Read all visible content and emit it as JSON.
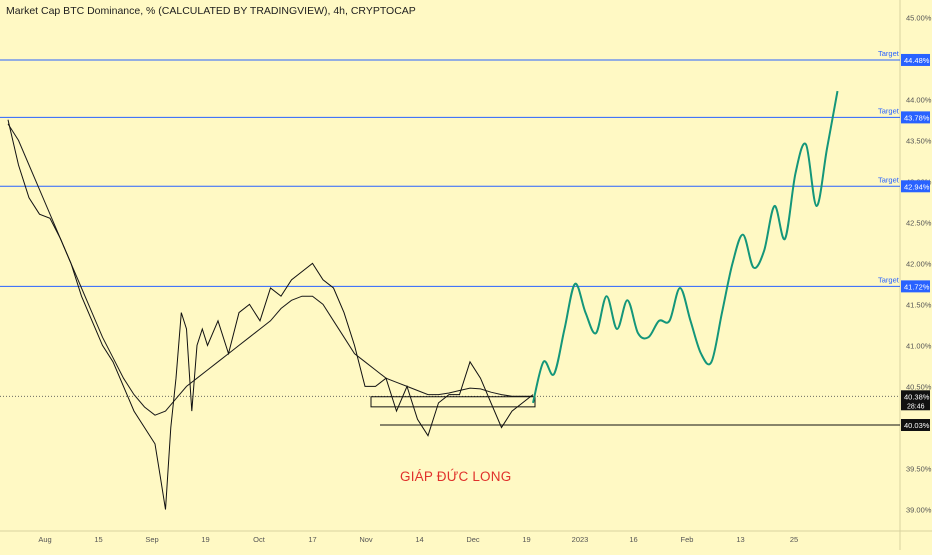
{
  "title": "Market Cap BTC Dominance, % (CALCULATED BY TRADINGVIEW), 4h, CRYPTOCAP",
  "signature": "GIÁP ĐỨC LONG",
  "colors": {
    "background": "#fff9c4",
    "price": "#111111",
    "ma": "#1a1a1a",
    "target_line": "#2962ff",
    "projection": "#14967a",
    "signature": "#e0312b",
    "axis_text": "#555555"
  },
  "chart_data": {
    "type": "line",
    "y_axis": {
      "ticks": [
        "45.00%",
        "44.00%",
        "43.50%",
        "43.00%",
        "42.50%",
        "42.00%",
        "41.50%",
        "41.00%",
        "40.50%",
        "39.50%",
        "39.00%"
      ],
      "tick_values": [
        45.0,
        44.0,
        43.5,
        43.0,
        42.5,
        42.0,
        41.5,
        41.0,
        40.5,
        39.5,
        39.0
      ],
      "range": [
        38.75,
        45.15
      ]
    },
    "x_axis": {
      "ticks": [
        "Aug",
        "15",
        "Sep",
        "19",
        "Oct",
        "17",
        "Nov",
        "14",
        "Dec",
        "19",
        "2023",
        "16",
        "Feb",
        "13",
        "25"
      ]
    },
    "target_levels": [
      {
        "label": "Target",
        "badge": "44.48%",
        "value": 44.48
      },
      {
        "label": "Target",
        "badge": "43.78%",
        "value": 43.78
      },
      {
        "label": "Target",
        "badge": "42.94%",
        "value": 42.94
      },
      {
        "label": "Target",
        "badge": "41.72%",
        "value": 41.72
      }
    ],
    "current_price": {
      "badge": "40.38%",
      "value": 40.38,
      "countdown": "28:46"
    },
    "support_level": {
      "badge": "40.03%",
      "value": 40.03
    },
    "price_series": [
      [
        0,
        43.75
      ],
      [
        1,
        43.2
      ],
      [
        2,
        42.8
      ],
      [
        3,
        42.6
      ],
      [
        4,
        42.55
      ],
      [
        5,
        42.3
      ],
      [
        6,
        42.0
      ],
      [
        7,
        41.6
      ],
      [
        8,
        41.3
      ],
      [
        9,
        41.0
      ],
      [
        10,
        40.8
      ],
      [
        11,
        40.5
      ],
      [
        12,
        40.2
      ],
      [
        13,
        40.0
      ],
      [
        14,
        39.8
      ],
      [
        14.5,
        39.4
      ],
      [
        15,
        39.0
      ],
      [
        15.5,
        40.0
      ],
      [
        16,
        40.6
      ],
      [
        16.5,
        41.4
      ],
      [
        17,
        41.2
      ],
      [
        17.5,
        40.2
      ],
      [
        18,
        41.0
      ],
      [
        18.5,
        41.2
      ],
      [
        19,
        41.0
      ],
      [
        20,
        41.3
      ],
      [
        21,
        40.9
      ],
      [
        22,
        41.4
      ],
      [
        23,
        41.5
      ],
      [
        24,
        41.3
      ],
      [
        25,
        41.7
      ],
      [
        26,
        41.6
      ],
      [
        27,
        41.8
      ],
      [
        28,
        41.9
      ],
      [
        29,
        42.0
      ],
      [
        30,
        41.8
      ],
      [
        31,
        41.7
      ],
      [
        32,
        41.4
      ],
      [
        33,
        41.0
      ],
      [
        34,
        40.5
      ],
      [
        35,
        40.5
      ],
      [
        36,
        40.6
      ],
      [
        37,
        40.2
      ],
      [
        38,
        40.5
      ],
      [
        39,
        40.1
      ],
      [
        40,
        39.9
      ],
      [
        41,
        40.3
      ],
      [
        42,
        40.4
      ],
      [
        43,
        40.4
      ],
      [
        44,
        40.8
      ],
      [
        45,
        40.6
      ],
      [
        46,
        40.3
      ],
      [
        47,
        40.0
      ],
      [
        48,
        40.2
      ],
      [
        49,
        40.3
      ],
      [
        50,
        40.4
      ]
    ],
    "ma_series": [
      [
        0,
        43.7
      ],
      [
        1,
        43.5
      ],
      [
        2,
        43.2
      ],
      [
        3,
        42.9
      ],
      [
        4,
        42.6
      ],
      [
        5,
        42.3
      ],
      [
        6,
        42.0
      ],
      [
        7,
        41.7
      ],
      [
        8,
        41.4
      ],
      [
        9,
        41.1
      ],
      [
        10,
        40.85
      ],
      [
        11,
        40.6
      ],
      [
        12,
        40.4
      ],
      [
        13,
        40.25
      ],
      [
        14,
        40.15
      ],
      [
        15,
        40.2
      ],
      [
        16,
        40.35
      ],
      [
        17,
        40.5
      ],
      [
        18,
        40.6
      ],
      [
        19,
        40.7
      ],
      [
        20,
        40.8
      ],
      [
        21,
        40.9
      ],
      [
        22,
        41.0
      ],
      [
        23,
        41.1
      ],
      [
        24,
        41.2
      ],
      [
        25,
        41.3
      ],
      [
        26,
        41.45
      ],
      [
        27,
        41.55
      ],
      [
        28,
        41.6
      ],
      [
        29,
        41.6
      ],
      [
        30,
        41.5
      ],
      [
        31,
        41.3
      ],
      [
        32,
        41.1
      ],
      [
        33,
        40.9
      ],
      [
        34,
        40.8
      ],
      [
        35,
        40.7
      ],
      [
        36,
        40.6
      ],
      [
        37,
        40.55
      ],
      [
        38,
        40.5
      ],
      [
        39,
        40.45
      ],
      [
        40,
        40.4
      ],
      [
        41,
        40.4
      ],
      [
        42,
        40.42
      ],
      [
        43,
        40.45
      ],
      [
        44,
        40.48
      ],
      [
        45,
        40.47
      ],
      [
        46,
        40.43
      ],
      [
        47,
        40.4
      ],
      [
        48,
        40.38
      ],
      [
        49,
        40.38
      ],
      [
        50,
        40.38
      ]
    ],
    "projection_series": [
      [
        50,
        40.3
      ],
      [
        51,
        40.8
      ],
      [
        52,
        40.65
      ],
      [
        53,
        41.2
      ],
      [
        54,
        41.75
      ],
      [
        55,
        41.4
      ],
      [
        56,
        41.15
      ],
      [
        57,
        41.6
      ],
      [
        58,
        41.2
      ],
      [
        59,
        41.55
      ],
      [
        60,
        41.15
      ],
      [
        61,
        41.1
      ],
      [
        62,
        41.3
      ],
      [
        63,
        41.3
      ],
      [
        64,
        41.7
      ],
      [
        65,
        41.3
      ],
      [
        66,
        40.9
      ],
      [
        67,
        40.8
      ],
      [
        68,
        41.4
      ],
      [
        69,
        42.0
      ],
      [
        70,
        42.35
      ],
      [
        71,
        41.95
      ],
      [
        72,
        42.15
      ],
      [
        73,
        42.7
      ],
      [
        74,
        42.3
      ],
      [
        75,
        43.1
      ],
      [
        76,
        43.45
      ],
      [
        77,
        42.7
      ],
      [
        78,
        43.4
      ],
      [
        79,
        44.1
      ]
    ],
    "zones": [
      {
        "name": "consolidation",
        "y_min": 40.3,
        "y_max": 40.35
      }
    ],
    "grid": false
  }
}
